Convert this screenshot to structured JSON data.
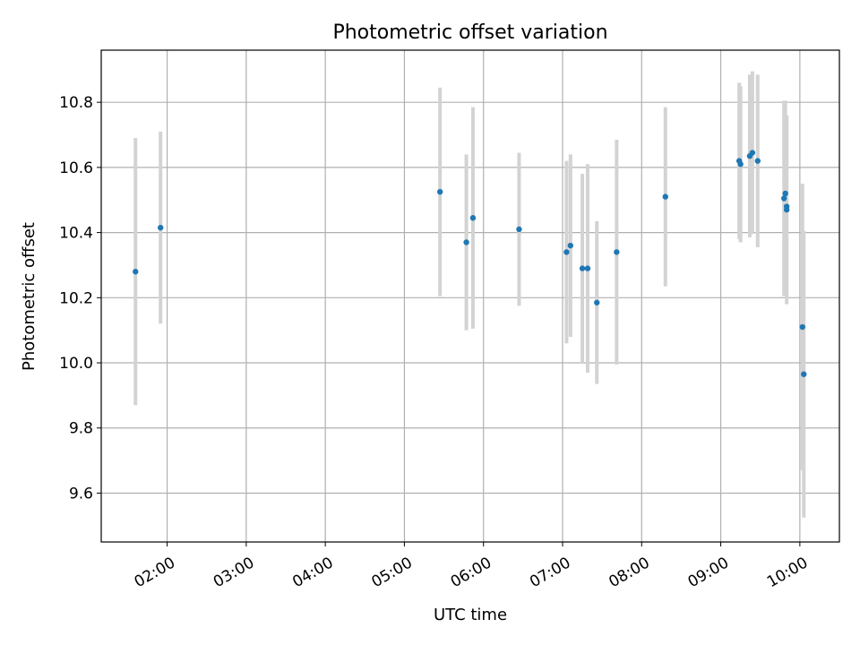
{
  "chart_data": {
    "type": "scatter",
    "title": "Photometric offset variation",
    "xlabel": "UTC time",
    "ylabel": "Photometric offset",
    "xlim": [
      "01:10",
      "10:30"
    ],
    "ylim": [
      9.45,
      10.96
    ],
    "xticks": [
      "02:00",
      "03:00",
      "04:00",
      "05:00",
      "06:00",
      "07:00",
      "08:00",
      "09:00",
      "10:00"
    ],
    "yticks": [
      "9.6",
      "9.8",
      "10.0",
      "10.2",
      "10.4",
      "10.6",
      "10.8"
    ],
    "grid": true,
    "point_color": "#1f77b4",
    "errorbar_color": "#d3d3d3",
    "points": [
      {
        "t": "01:36",
        "y": 10.28,
        "err": 0.41
      },
      {
        "t": "01:55",
        "y": 10.415,
        "err": 0.295
      },
      {
        "t": "05:27",
        "y": 10.525,
        "err": 0.32
      },
      {
        "t": "05:47",
        "y": 10.37,
        "err": 0.27
      },
      {
        "t": "05:52",
        "y": 10.445,
        "err": 0.34
      },
      {
        "t": "06:27",
        "y": 10.41,
        "err": 0.235
      },
      {
        "t": "07:03",
        "y": 10.34,
        "err": 0.28
      },
      {
        "t": "07:06",
        "y": 10.36,
        "err": 0.28
      },
      {
        "t": "07:15",
        "y": 10.29,
        "err": 0.29
      },
      {
        "t": "07:19",
        "y": 10.29,
        "err": 0.32
      },
      {
        "t": "07:26",
        "y": 10.185,
        "err": 0.25
      },
      {
        "t": "07:41",
        "y": 10.34,
        "err": 0.345
      },
      {
        "t": "08:18",
        "y": 10.51,
        "err": 0.275
      },
      {
        "t": "09:14",
        "y": 10.62,
        "err": 0.24
      },
      {
        "t": "09:15",
        "y": 10.61,
        "err": 0.24
      },
      {
        "t": "09:22",
        "y": 10.635,
        "err": 0.25
      },
      {
        "t": "09:24",
        "y": 10.645,
        "err": 0.25
      },
      {
        "t": "09:28",
        "y": 10.62,
        "err": 0.265
      },
      {
        "t": "09:48",
        "y": 10.505,
        "err": 0.3
      },
      {
        "t": "09:49",
        "y": 10.52,
        "err": 0.285
      },
      {
        "t": "09:50",
        "y": 10.48,
        "err": 0.28
      },
      {
        "t": "09:50",
        "y": 10.47,
        "err": 0.29
      },
      {
        "t": "10:02",
        "y": 10.11,
        "err": 0.44
      },
      {
        "t": "10:03",
        "y": 9.965,
        "err": 0.44
      }
    ]
  }
}
